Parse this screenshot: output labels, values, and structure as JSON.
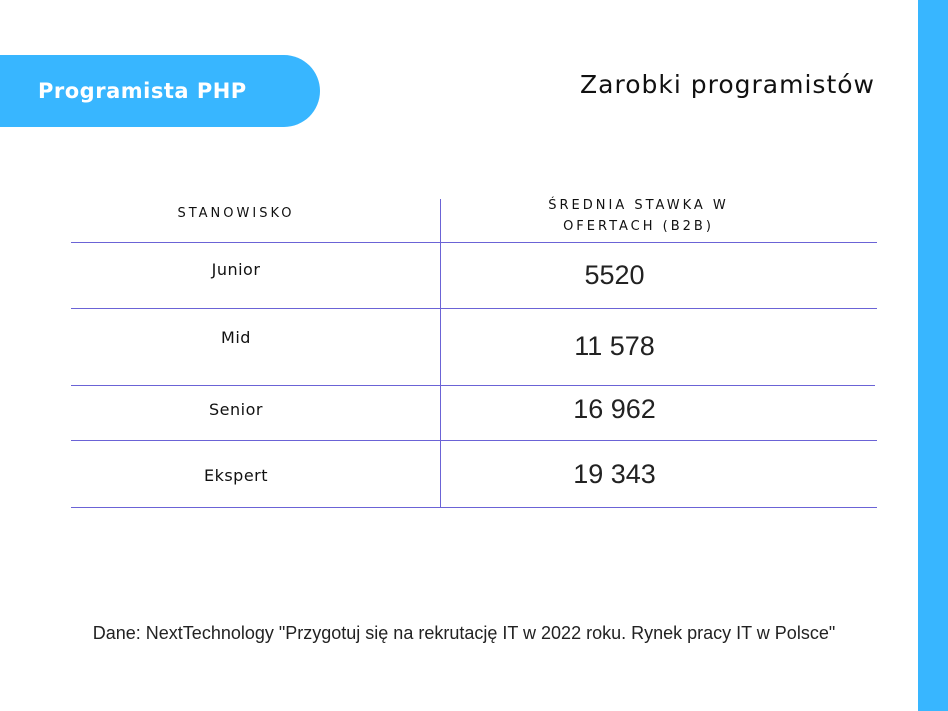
{
  "badge": {
    "label": "Programista PHP"
  },
  "title": "Zarobki programistów",
  "colors": {
    "accent": "#38b6ff",
    "table_lines": "#6b63d6"
  },
  "table": {
    "headers": [
      "STANOWISKO",
      "ŚREDNIA STAWKA W OFERTACH (B2B)"
    ],
    "rows": [
      {
        "position": "Junior",
        "value": "5520"
      },
      {
        "position": "Mid",
        "value": "11 578"
      },
      {
        "position": "Senior",
        "value": "16 962"
      },
      {
        "position": "Ekspert",
        "value": "19 343"
      }
    ]
  },
  "source": "Dane: NextTechnology \"Przygotuj się na rekrutację IT w 2022 roku. Rynek pracy IT w Polsce\""
}
